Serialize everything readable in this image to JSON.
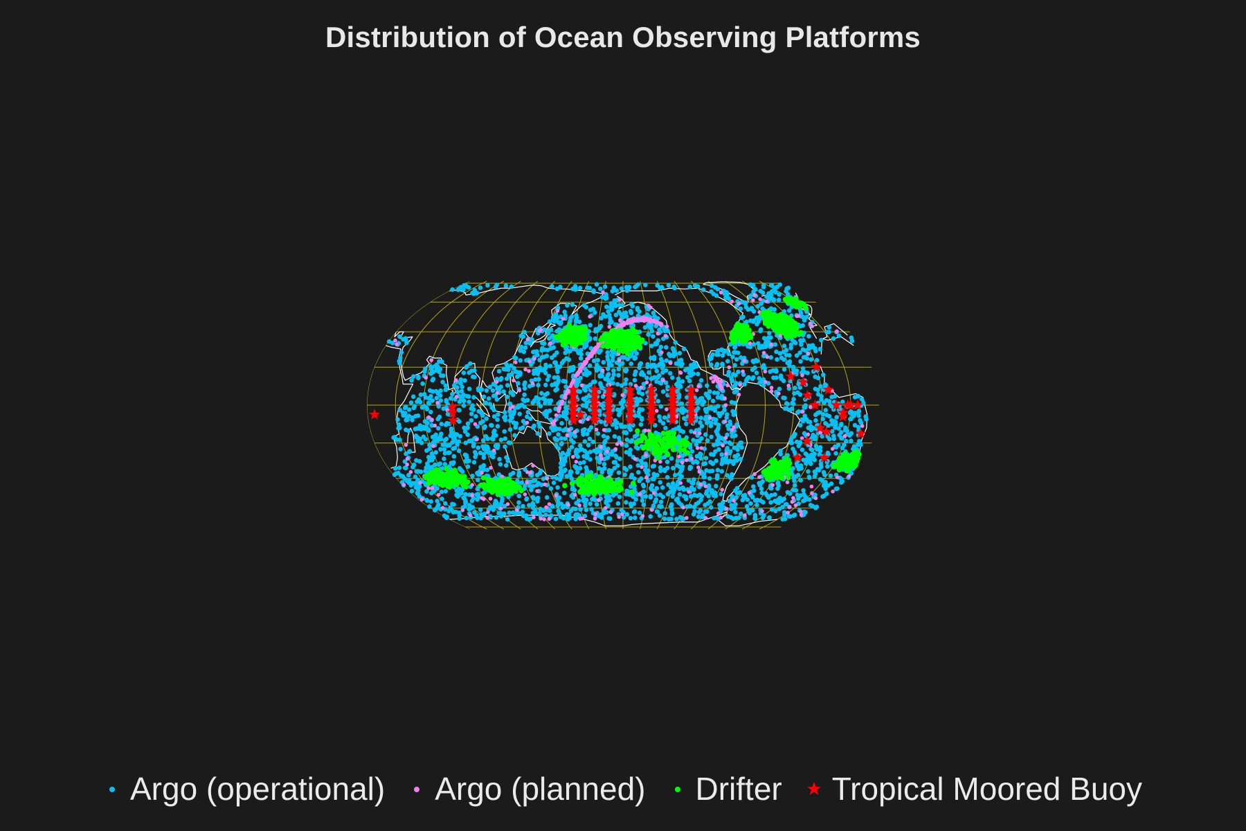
{
  "title": "Distribution of Ocean Observing Platforms",
  "colors": {
    "background": "#1b1b1b",
    "coastline": "#ffffff",
    "graticule": "#b8a812",
    "argo_operational": "#0abff2",
    "argo_planned": "#ee82ee",
    "drifter": "#00ff00",
    "moored_buoy": "#ff0000"
  },
  "map": {
    "projection": "equal-earth (Pacific-centered)",
    "central_longitude": 200,
    "graticule_spacing_deg": 20
  },
  "legend": {
    "position": "bottom",
    "items": [
      {
        "label": "Argo (operational)",
        "marker": "dot",
        "color": "#0abff2"
      },
      {
        "label": "Argo (planned)",
        "marker": "dot",
        "color": "#ee82ee"
      },
      {
        "label": "Drifter",
        "marker": "dot",
        "color": "#00ff00"
      },
      {
        "label": "Tropical Moored Buoy",
        "marker": "star",
        "color": "#ff0000"
      }
    ]
  },
  "chart_data": {
    "type": "scatter",
    "title": "Distribution of Ocean Observing Platforms",
    "xlabel": "",
    "ylabel": "",
    "grid": true,
    "legend_placement": "bottom",
    "series": [
      {
        "name": "Tropical Moored Buoy",
        "marker": "star",
        "color": "#ff0000",
        "points": [
          [
            165,
            -8
          ],
          [
            165,
            -5
          ],
          [
            165,
            -2
          ],
          [
            165,
            0
          ],
          [
            165,
            2
          ],
          [
            165,
            5
          ],
          [
            165,
            8
          ],
          [
            180,
            -8
          ],
          [
            180,
            -5
          ],
          [
            180,
            -2
          ],
          [
            180,
            0
          ],
          [
            180,
            2
          ],
          [
            180,
            5
          ],
          [
            180,
            8
          ],
          [
            190,
            -8
          ],
          [
            190,
            -5
          ],
          [
            190,
            -2
          ],
          [
            190,
            0
          ],
          [
            190,
            2
          ],
          [
            190,
            5
          ],
          [
            190,
            8
          ],
          [
            205,
            -8
          ],
          [
            205,
            -5
          ],
          [
            205,
            -2
          ],
          [
            205,
            0
          ],
          [
            205,
            2
          ],
          [
            205,
            5
          ],
          [
            205,
            8
          ],
          [
            220,
            -8
          ],
          [
            220,
            -5
          ],
          [
            220,
            -2
          ],
          [
            220,
            0
          ],
          [
            220,
            2
          ],
          [
            220,
            5
          ],
          [
            220,
            8
          ],
          [
            235,
            -8
          ],
          [
            235,
            -5
          ],
          [
            235,
            -2
          ],
          [
            235,
            0
          ],
          [
            235,
            2
          ],
          [
            235,
            5
          ],
          [
            235,
            8
          ],
          [
            248,
            -8
          ],
          [
            248,
            -5
          ],
          [
            248,
            -2
          ],
          [
            248,
            0
          ],
          [
            248,
            2
          ],
          [
            248,
            5
          ],
          [
            248,
            8
          ],
          [
            320,
            15
          ],
          [
            328,
            12
          ],
          [
            340,
            20
          ],
          [
            345,
            8
          ],
          [
            335,
            0
          ],
          [
            350,
            0
          ],
          [
            358,
            0
          ],
          [
            5,
            0
          ],
          [
            355,
            -4
          ],
          [
            355,
            -6
          ],
          [
            340,
            -12
          ],
          [
            345,
            -14
          ],
          [
            333,
            -19
          ],
          [
            350,
            -28
          ],
          [
            330,
            -28
          ],
          [
            80,
            -1
          ],
          [
            80,
            -4
          ],
          [
            80,
            -8
          ],
          [
            170,
            -5
          ],
          [
            0,
            0
          ],
          [
            10,
            -15
          ],
          [
            25,
            -5
          ],
          [
            330,
            5
          ]
        ]
      },
      {
        "name": "Argo (operational)",
        "marker": "dot",
        "color": "#0abff2",
        "count": 3200
      },
      {
        "name": "Argo (planned)",
        "marker": "dot",
        "color": "#ee82ee",
        "count": 700
      },
      {
        "name": "Drifter",
        "marker": "dot",
        "color": "#00ff00",
        "count": 1500
      }
    ]
  }
}
